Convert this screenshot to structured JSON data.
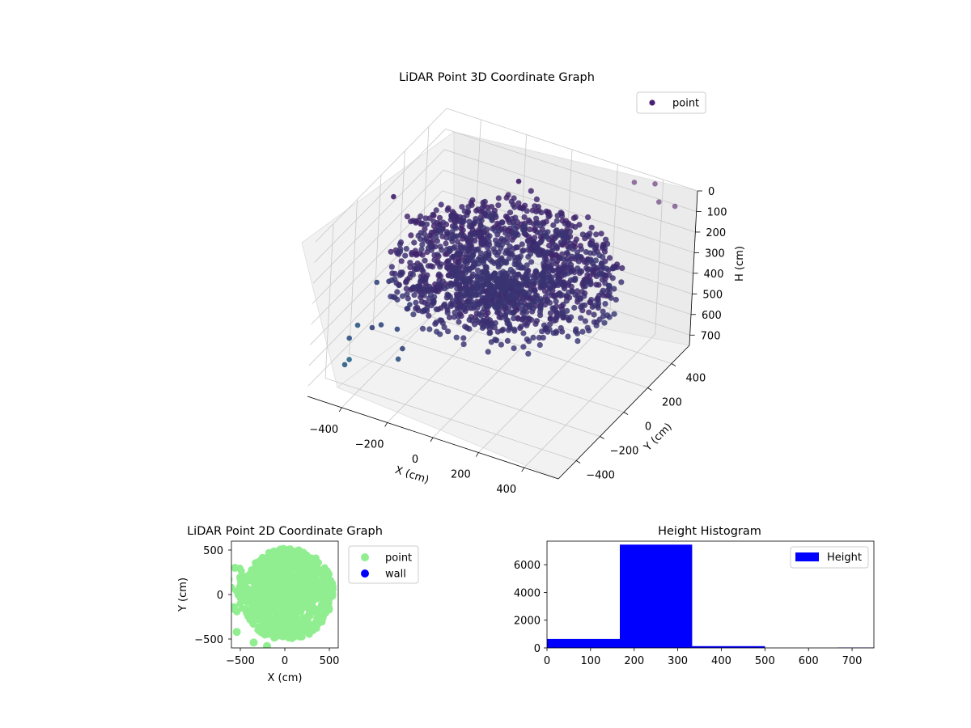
{
  "chart_data": [
    {
      "type": "scatter",
      "title": "LiDAR Point 3D Coordinate Graph",
      "xlabel": "X (cm)",
      "ylabel": "Y (cm)",
      "zlabel": "H (cm)",
      "x_ticks": [
        "−400",
        "−200",
        "0",
        "200",
        "400"
      ],
      "y_ticks": [
        "−400",
        "−200",
        "0",
        "200",
        "400"
      ],
      "z_ticks": [
        "0",
        "100",
        "200",
        "300",
        "400",
        "500",
        "600",
        "700"
      ],
      "xlim": [
        -550,
        550
      ],
      "ylim": [
        -550,
        550
      ],
      "zlim": [
        750,
        0
      ],
      "z_inverted": true,
      "legend": {
        "entries": [
          "point"
        ],
        "placement": "upper-right"
      },
      "series": [
        {
          "name": "point",
          "color": "#482173",
          "description_points": "dense ring of points around the sensor at heights ~170-330 cm, with sparse outliers"
        }
      ],
      "grid": true
    },
    {
      "type": "scatter",
      "title": "LiDAR Point 2D Coordinate Graph",
      "xlabel": "X (cm)",
      "ylabel": "Y (cm)",
      "x_ticks": [
        "−500",
        "0",
        "500"
      ],
      "y_ticks": [
        "500",
        "0",
        "−500"
      ],
      "xlim": [
        -600,
        600
      ],
      "ylim": [
        -600,
        600
      ],
      "legend": {
        "entries": [
          "point",
          "wall"
        ],
        "placement": "outside-right"
      },
      "series": [
        {
          "name": "point",
          "color": "#90ee90"
        },
        {
          "name": "wall",
          "color": "#0000ff"
        }
      ],
      "grid": false
    },
    {
      "type": "bar",
      "title": "Height Histogram",
      "xlabel": "",
      "ylabel": "",
      "x_ticks": [
        "0",
        "100",
        "200",
        "300",
        "400",
        "500",
        "600",
        "700"
      ],
      "y_ticks": [
        "0",
        "2000",
        "4000",
        "6000"
      ],
      "xlim": [
        0,
        750
      ],
      "ylim": [
        0,
        7700
      ],
      "bins": [
        {
          "x0": 0,
          "x1": 167,
          "value": 650
        },
        {
          "x0": 167,
          "x1": 333,
          "value": 7450
        },
        {
          "x0": 333,
          "x1": 500,
          "value": 130
        },
        {
          "x0": 500,
          "x1": 667,
          "value": 0
        },
        {
          "x0": 667,
          "x1": 750,
          "value": 25
        }
      ],
      "color": "#0000ff",
      "legend": {
        "entries": [
          "Height"
        ],
        "placement": "upper-right"
      },
      "grid": false
    }
  ]
}
